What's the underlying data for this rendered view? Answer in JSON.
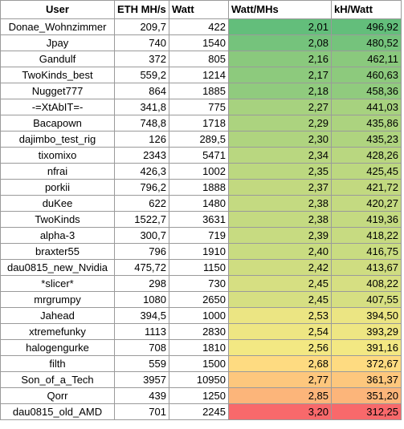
{
  "headers": [
    "User",
    "ETH MH/s",
    "Watt",
    "Watt/MHs",
    "kH/Watt"
  ],
  "colors": {
    "green": "#63be7b",
    "yellow": "#ffeb84",
    "red": "#f8696b"
  },
  "rows": [
    {
      "user": "Donae_Wohnzimmer",
      "eth": "209,7",
      "watt": "422",
      "watt_mhs": "2,01",
      "kh_watt": "496,92",
      "level": 0.0
    },
    {
      "user": "Jpay",
      "eth": "740",
      "watt": "1540",
      "watt_mhs": "2,08",
      "kh_watt": "480,52",
      "level": 0.059
    },
    {
      "user": "Gandulf",
      "eth": "372",
      "watt": "805",
      "watt_mhs": "2,16",
      "kh_watt": "462,11",
      "level": 0.126
    },
    {
      "user": "TwoKinds_best",
      "eth": "559,2",
      "watt": "1214",
      "watt_mhs": "2,17",
      "kh_watt": "460,63",
      "level": 0.134
    },
    {
      "user": "Nugget777",
      "eth": "864",
      "watt": "1885",
      "watt_mhs": "2,18",
      "kh_watt": "458,36",
      "level": 0.143
    },
    {
      "user": "-=XtAbIT=-",
      "eth": "341,8",
      "watt": "775",
      "watt_mhs": "2,27",
      "kh_watt": "441,03",
      "level": 0.218
    },
    {
      "user": "Bacapown",
      "eth": "748,8",
      "watt": "1718",
      "watt_mhs": "2,29",
      "kh_watt": "435,86",
      "level": 0.235
    },
    {
      "user": "dajimbo_test_rig",
      "eth": "126",
      "watt": "289,5",
      "watt_mhs": "2,30",
      "kh_watt": "435,23",
      "level": 0.244
    },
    {
      "user": "tixomixo",
      "eth": "2343",
      "watt": "5471",
      "watt_mhs": "2,34",
      "kh_watt": "428,26",
      "level": 0.277
    },
    {
      "user": "nfrai",
      "eth": "426,3",
      "watt": "1002",
      "watt_mhs": "2,35",
      "kh_watt": "425,45",
      "level": 0.286
    },
    {
      "user": "porkii",
      "eth": "796,2",
      "watt": "1888",
      "watt_mhs": "2,37",
      "kh_watt": "421,72",
      "level": 0.303
    },
    {
      "user": "duKee",
      "eth": "622",
      "watt": "1480",
      "watt_mhs": "2,38",
      "kh_watt": "420,27",
      "level": 0.311
    },
    {
      "user": "TwoKinds",
      "eth": "1522,7",
      "watt": "3631",
      "watt_mhs": "2,38",
      "kh_watt": "419,36",
      "level": 0.311
    },
    {
      "user": "alpha-3",
      "eth": "300,7",
      "watt": "719",
      "watt_mhs": "2,39",
      "kh_watt": "418,22",
      "level": 0.319
    },
    {
      "user": "braxter55",
      "eth": "796",
      "watt": "1910",
      "watt_mhs": "2,40",
      "kh_watt": "416,75",
      "level": 0.328
    },
    {
      "user": "dau0815_new_Nvidia",
      "eth": "475,72",
      "watt": "1150",
      "watt_mhs": "2,42",
      "kh_watt": "413,67",
      "level": 0.345
    },
    {
      "user": "*slicer*",
      "eth": "298",
      "watt": "730",
      "watt_mhs": "2,45",
      "kh_watt": "408,22",
      "level": 0.37
    },
    {
      "user": "mrgrumpy",
      "eth": "1080",
      "watt": "2650",
      "watt_mhs": "2,45",
      "kh_watt": "407,55",
      "level": 0.37
    },
    {
      "user": "Jahead",
      "eth": "394,5",
      "watt": "1000",
      "watt_mhs": "2,53",
      "kh_watt": "394,50",
      "level": 0.437
    },
    {
      "user": "xtremefunky",
      "eth": "1113",
      "watt": "2830",
      "watt_mhs": "2,54",
      "kh_watt": "393,29",
      "level": 0.445
    },
    {
      "user": "halogengurke",
      "eth": "708",
      "watt": "1810",
      "watt_mhs": "2,56",
      "kh_watt": "391,16",
      "level": 0.462
    },
    {
      "user": "filth",
      "eth": "559",
      "watt": "1500",
      "watt_mhs": "2,68",
      "kh_watt": "372,67",
      "level": 0.563
    },
    {
      "user": "Son_of_a_Tech",
      "eth": "3957",
      "watt": "10950",
      "watt_mhs": "2,77",
      "kh_watt": "361,37",
      "level": 0.639
    },
    {
      "user": "Qorr",
      "eth": "439",
      "watt": "1250",
      "watt_mhs": "2,85",
      "kh_watt": "351,20",
      "level": 0.706
    },
    {
      "user": "dau0815_old_AMD",
      "eth": "701",
      "watt": "2245",
      "watt_mhs": "3,20",
      "kh_watt": "312,25",
      "level": 1.0
    }
  ]
}
